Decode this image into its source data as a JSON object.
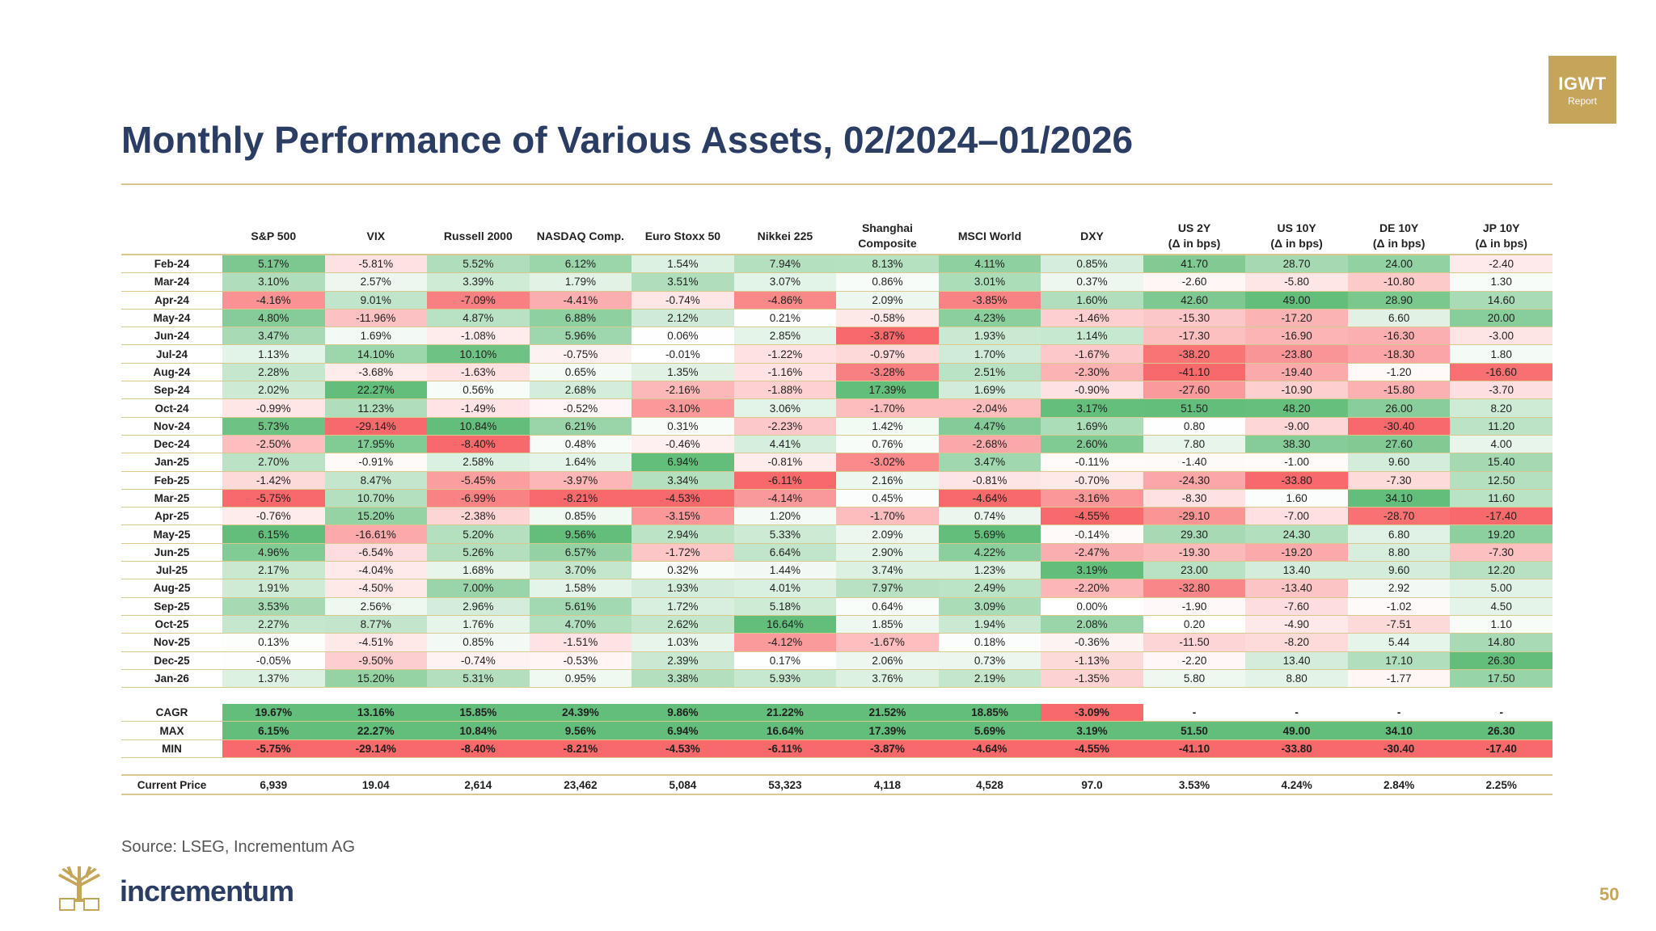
{
  "badge": {
    "line1": "IGWT",
    "line2": "Report"
  },
  "title": "Monthly Performance of Various Assets, 02/2024–01/2026",
  "columns": [
    {
      "line1": "S&P 500",
      "line2": ""
    },
    {
      "line1": "VIX",
      "line2": ""
    },
    {
      "line1": "Russell 2000",
      "line2": ""
    },
    {
      "line1": "NASDAQ Comp.",
      "line2": ""
    },
    {
      "line1": "Euro Stoxx 50",
      "line2": ""
    },
    {
      "line1": "Nikkei 225",
      "line2": ""
    },
    {
      "line1": "Shanghai",
      "line2": "Composite"
    },
    {
      "line1": "MSCI World",
      "line2": ""
    },
    {
      "line1": "DXY",
      "line2": ""
    },
    {
      "line1": "US 2Y",
      "line2": "(Δ in bps)"
    },
    {
      "line1": "US 10Y",
      "line2": "(Δ in bps)"
    },
    {
      "line1": "DE 10Y",
      "line2": "(Δ in bps)"
    },
    {
      "line1": "JP 10Y",
      "line2": "(Δ in bps)"
    }
  ],
  "rows": [
    {
      "label": "Feb-24",
      "values": [
        "5.17%",
        "-5.81%",
        "5.52%",
        "6.12%",
        "1.54%",
        "7.94%",
        "8.13%",
        "4.11%",
        "0.85%",
        "41.70",
        "28.70",
        "24.00",
        "-2.40"
      ]
    },
    {
      "label": "Mar-24",
      "values": [
        "3.10%",
        "2.57%",
        "3.39%",
        "1.79%",
        "3.51%",
        "3.07%",
        "0.86%",
        "3.01%",
        "0.37%",
        "-2.60",
        "-5.80",
        "-10.80",
        "1.30"
      ]
    },
    {
      "label": "Apr-24",
      "values": [
        "-4.16%",
        "9.01%",
        "-7.09%",
        "-4.41%",
        "-0.74%",
        "-4.86%",
        "2.09%",
        "-3.85%",
        "1.60%",
        "42.60",
        "49.00",
        "28.90",
        "14.60"
      ]
    },
    {
      "label": "May-24",
      "values": [
        "4.80%",
        "-11.96%",
        "4.87%",
        "6.88%",
        "2.12%",
        "0.21%",
        "-0.58%",
        "4.23%",
        "-1.46%",
        "-15.30",
        "-17.20",
        "6.60",
        "20.00"
      ]
    },
    {
      "label": "Jun-24",
      "values": [
        "3.47%",
        "1.69%",
        "-1.08%",
        "5.96%",
        "0.06%",
        "2.85%",
        "-3.87%",
        "1.93%",
        "1.14%",
        "-17.30",
        "-16.90",
        "-16.30",
        "-3.00"
      ]
    },
    {
      "label": "Jul-24",
      "values": [
        "1.13%",
        "14.10%",
        "10.10%",
        "-0.75%",
        "-0.01%",
        "-1.22%",
        "-0.97%",
        "1.70%",
        "-1.67%",
        "-38.20",
        "-23.80",
        "-18.30",
        "1.80"
      ]
    },
    {
      "label": "Aug-24",
      "values": [
        "2.28%",
        "-3.68%",
        "-1.63%",
        "0.65%",
        "1.35%",
        "-1.16%",
        "-3.28%",
        "2.51%",
        "-2.30%",
        "-41.10",
        "-19.40",
        "-1.20",
        "-16.60"
      ]
    },
    {
      "label": "Sep-24",
      "values": [
        "2.02%",
        "22.27%",
        "0.56%",
        "2.68%",
        "-2.16%",
        "-1.88%",
        "17.39%",
        "1.69%",
        "-0.90%",
        "-27.60",
        "-10.90",
        "-15.80",
        "-3.70"
      ]
    },
    {
      "label": "Oct-24",
      "values": [
        "-0.99%",
        "11.23%",
        "-1.49%",
        "-0.52%",
        "-3.10%",
        "3.06%",
        "-1.70%",
        "-2.04%",
        "3.17%",
        "51.50",
        "48.20",
        "26.00",
        "8.20"
      ]
    },
    {
      "label": "Nov-24",
      "values": [
        "5.73%",
        "-29.14%",
        "10.84%",
        "6.21%",
        "0.31%",
        "-2.23%",
        "1.42%",
        "4.47%",
        "1.69%",
        "0.80",
        "-9.00",
        "-30.40",
        "11.20"
      ]
    },
    {
      "label": "Dec-24",
      "values": [
        "-2.50%",
        "17.95%",
        "-8.40%",
        "0.48%",
        "-0.46%",
        "4.41%",
        "0.76%",
        "-2.68%",
        "2.60%",
        "7.80",
        "38.30",
        "27.60",
        "4.00"
      ]
    },
    {
      "label": "Jan-25",
      "values": [
        "2.70%",
        "-0.91%",
        "2.58%",
        "1.64%",
        "6.94%",
        "-0.81%",
        "-3.02%",
        "3.47%",
        "-0.11%",
        "-1.40",
        "-1.00",
        "9.60",
        "15.40"
      ]
    },
    {
      "label": "Feb-25",
      "values": [
        "-1.42%",
        "8.47%",
        "-5.45%",
        "-3.97%",
        "3.34%",
        "-6.11%",
        "2.16%",
        "-0.81%",
        "-0.70%",
        "-24.30",
        "-33.80",
        "-7.30",
        "12.50"
      ]
    },
    {
      "label": "Mar-25",
      "values": [
        "-5.75%",
        "10.70%",
        "-6.99%",
        "-8.21%",
        "-4.53%",
        "-4.14%",
        "0.45%",
        "-4.64%",
        "-3.16%",
        "-8.30",
        "1.60",
        "34.10",
        "11.60"
      ]
    },
    {
      "label": "Apr-25",
      "values": [
        "-0.76%",
        "15.20%",
        "-2.38%",
        "0.85%",
        "-3.15%",
        "1.20%",
        "-1.70%",
        "0.74%",
        "-4.55%",
        "-29.10",
        "-7.00",
        "-28.70",
        "-17.40"
      ]
    },
    {
      "label": "May-25",
      "values": [
        "6.15%",
        "-16.61%",
        "5.20%",
        "9.56%",
        "2.94%",
        "5.33%",
        "2.09%",
        "5.69%",
        "-0.14%",
        "29.30",
        "24.30",
        "6.80",
        "19.20"
      ]
    },
    {
      "label": "Jun-25",
      "values": [
        "4.96%",
        "-6.54%",
        "5.26%",
        "6.57%",
        "-1.72%",
        "6.64%",
        "2.90%",
        "4.22%",
        "-2.47%",
        "-19.30",
        "-19.20",
        "8.80",
        "-7.30"
      ]
    },
    {
      "label": "Jul-25",
      "values": [
        "2.17%",
        "-4.04%",
        "1.68%",
        "3.70%",
        "0.32%",
        "1.44%",
        "3.74%",
        "1.23%",
        "3.19%",
        "23.00",
        "13.40",
        "9.60",
        "12.20"
      ]
    },
    {
      "label": "Aug-25",
      "values": [
        "1.91%",
        "-4.50%",
        "7.00%",
        "1.58%",
        "1.93%",
        "4.01%",
        "7.97%",
        "2.49%",
        "-2.20%",
        "-32.80",
        "-13.40",
        "2.92",
        "5.00"
      ]
    },
    {
      "label": "Sep-25",
      "values": [
        "3.53%",
        "2.56%",
        "2.96%",
        "5.61%",
        "1.72%",
        "5.18%",
        "0.64%",
        "3.09%",
        "0.00%",
        "-1.90",
        "-7.60",
        "-1.02",
        "4.50"
      ]
    },
    {
      "label": "Oct-25",
      "values": [
        "2.27%",
        "8.77%",
        "1.76%",
        "4.70%",
        "2.62%",
        "16.64%",
        "1.85%",
        "1.94%",
        "2.08%",
        "0.20",
        "-4.90",
        "-7.51",
        "1.10"
      ]
    },
    {
      "label": "Nov-25",
      "values": [
        "0.13%",
        "-4.51%",
        "0.85%",
        "-1.51%",
        "1.03%",
        "-4.12%",
        "-1.67%",
        "0.18%",
        "-0.36%",
        "-11.50",
        "-8.20",
        "5.44",
        "14.80"
      ]
    },
    {
      "label": "Dec-25",
      "values": [
        "-0.05%",
        "-9.50%",
        "-0.74%",
        "-0.53%",
        "2.39%",
        "0.17%",
        "2.06%",
        "0.73%",
        "-1.13%",
        "-2.20",
        "13.40",
        "17.10",
        "26.30"
      ]
    },
    {
      "label": "Jan-26",
      "values": [
        "1.37%",
        "15.20%",
        "5.31%",
        "0.95%",
        "3.38%",
        "5.93%",
        "3.76%",
        "2.19%",
        "-1.35%",
        "5.80",
        "8.80",
        "-1.77",
        "17.50"
      ]
    }
  ],
  "summary": [
    {
      "label": "CAGR",
      "values": [
        "19.67%",
        "13.16%",
        "15.85%",
        "24.39%",
        "9.86%",
        "21.22%",
        "21.52%",
        "18.85%",
        "-3.09%",
        "-",
        "-",
        "-",
        "-"
      ]
    },
    {
      "label": "MAX",
      "values": [
        "6.15%",
        "22.27%",
        "10.84%",
        "9.56%",
        "6.94%",
        "16.64%",
        "17.39%",
        "5.69%",
        "3.19%",
        "51.50",
        "49.00",
        "34.10",
        "26.30"
      ]
    },
    {
      "label": "MIN",
      "values": [
        "-5.75%",
        "-29.14%",
        "-8.40%",
        "-8.21%",
        "-4.53%",
        "-6.11%",
        "-3.87%",
        "-4.64%",
        "-4.55%",
        "-41.10",
        "-33.80",
        "-30.40",
        "-17.40"
      ]
    }
  ],
  "current": {
    "label": "Current Price",
    "values": [
      "6,939",
      "19.04",
      "2,614",
      "23,462",
      "5,084",
      "53,323",
      "4,118",
      "4,528",
      "97.0",
      "3.53%",
      "4.24%",
      "2.84%",
      "2.25%"
    ]
  },
  "source": "Source: LSEG, Incrementum AG",
  "brand": "incrementum",
  "page_number": "50",
  "colors": {
    "positive": "#63be7b",
    "negative": "#f8696b",
    "neutral": "#ffffff",
    "accent": "#c5a55a",
    "title": "#2b3d63"
  }
}
